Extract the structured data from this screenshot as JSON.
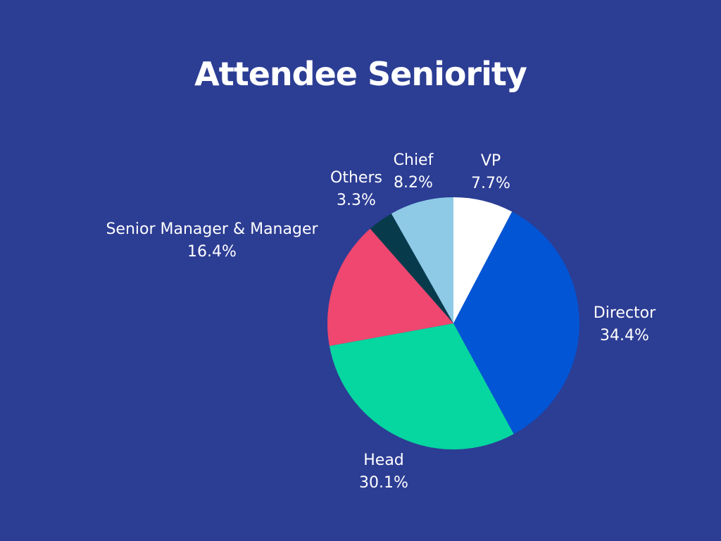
{
  "chart_data": {
    "type": "pie",
    "title": "Attendee Seniority",
    "slices": [
      {
        "name": "VP",
        "value": 7.7,
        "label": "7.7%",
        "color": "#ffffff"
      },
      {
        "name": "Director",
        "value": 34.4,
        "label": "34.4%",
        "color": "#0255d4"
      },
      {
        "name": "Head",
        "value": 30.1,
        "label": "30.1%",
        "color": "#06d6a0"
      },
      {
        "name": "Senior Manager & Manager",
        "value": 16.4,
        "label": "16.4%",
        "color": "#ef476f"
      },
      {
        "name": "Others",
        "value": 3.3,
        "label": "3.3%",
        "color": "#073b4c"
      },
      {
        "name": "Chief",
        "value": 8.2,
        "label": "8.2%",
        "color": "#8ecae6"
      }
    ],
    "start_angle": "12 o'clock",
    "direction": "clockwise",
    "legend": "none",
    "background": "#2c3d94"
  }
}
